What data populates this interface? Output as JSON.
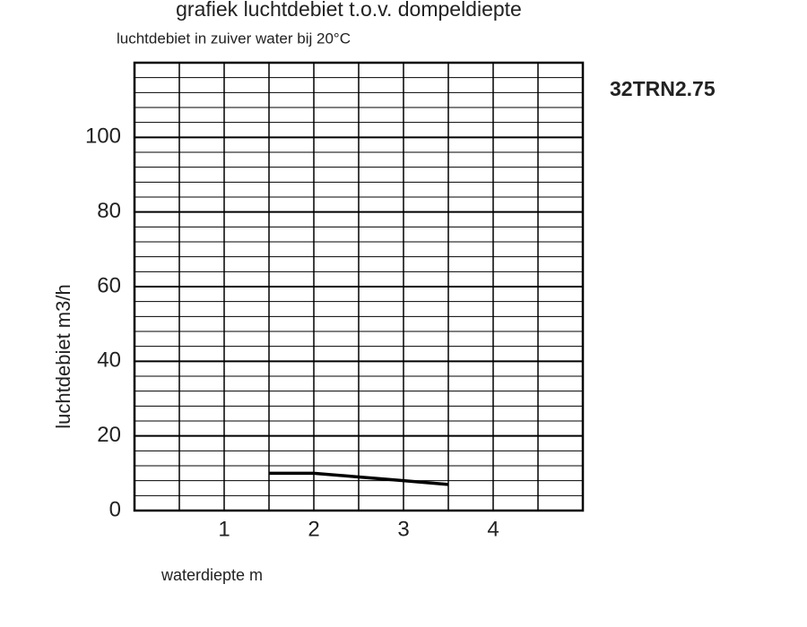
{
  "chart_data": {
    "type": "line",
    "title": "grafiek luchtdebiet t.o.v. dompeldiepte",
    "subtitle": "luchtdebiet in zuiver water bij 20°C",
    "annotation": "32TRN2.75",
    "x_label": "waterdiepte m",
    "y_label": "luchtdebiet m3/h",
    "x": [
      1.5,
      2,
      2.5,
      3,
      3.5
    ],
    "series": [
      {
        "color": "#000000",
        "values": [
          10,
          10,
          9,
          8,
          7
        ]
      }
    ],
    "xlim": [
      0,
      5
    ],
    "xticks": [
      1,
      2,
      3,
      4
    ],
    "ylim": [
      0,
      120
    ],
    "yticks": [
      0,
      20,
      40,
      60,
      80,
      100
    ],
    "xgrid": [
      0,
      0.5,
      1,
      1.5,
      2,
      2.5,
      3,
      3.5,
      4,
      4.5,
      5
    ],
    "ygrid": [
      4,
      8,
      12,
      16,
      24,
      28,
      32,
      36,
      44,
      48,
      52,
      56,
      64,
      68,
      72,
      76,
      84,
      88,
      92,
      96,
      104,
      108,
      112,
      116,
      120
    ],
    "grid": true
  }
}
